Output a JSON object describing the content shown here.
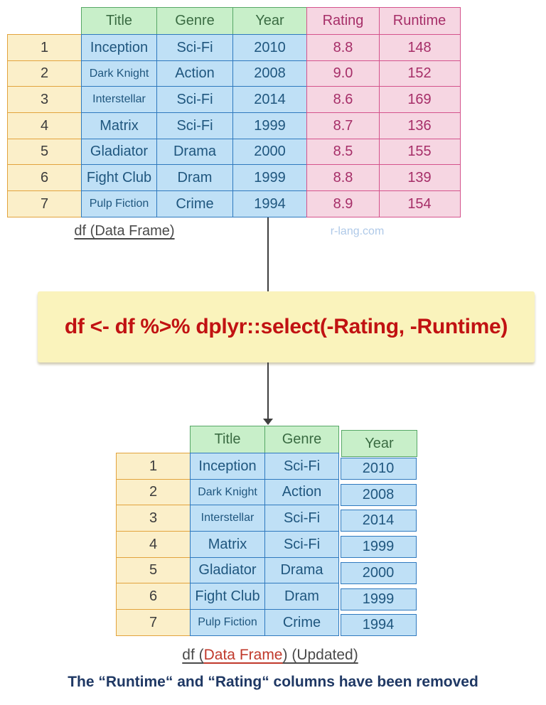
{
  "watermark": "r-lang.com",
  "code_box": {
    "code": "df <- df %>% dplyr::select(-Rating, -Runtime)"
  },
  "note": "The “Runtime“ and “Rating“ columns have been removed",
  "table_before": {
    "caption": "df (Data Frame)",
    "columns": [
      {
        "key": "title",
        "label": "Title",
        "group": "kept"
      },
      {
        "key": "genre",
        "label": "Genre",
        "group": "kept"
      },
      {
        "key": "year",
        "label": "Year",
        "group": "kept"
      },
      {
        "key": "rating",
        "label": "Rating",
        "group": "removed"
      },
      {
        "key": "runtime",
        "label": "Runtime",
        "group": "removed"
      }
    ],
    "rows": [
      {
        "n": "1",
        "title": "Inception",
        "genre": "Sci-Fi",
        "year": "2010",
        "rating": "8.8",
        "runtime": "148"
      },
      {
        "n": "2",
        "title": "Dark Knight",
        "genre": "Action",
        "year": "2008",
        "rating": "9.0",
        "runtime": "152"
      },
      {
        "n": "3",
        "title": "Interstellar",
        "genre": "Sci-Fi",
        "year": "2014",
        "rating": "8.6",
        "runtime": "169"
      },
      {
        "n": "4",
        "title": "Matrix",
        "genre": "Sci-Fi",
        "year": "1999",
        "rating": "8.7",
        "runtime": "136"
      },
      {
        "n": "5",
        "title": "Gladiator",
        "genre": "Drama",
        "year": "2000",
        "rating": "8.5",
        "runtime": "155"
      },
      {
        "n": "6",
        "title": "Fight Club",
        "genre": "Dram",
        "year": "1999",
        "rating": "8.8",
        "runtime": "139"
      },
      {
        "n": "7",
        "title": "Pulp Fiction",
        "genre": "Crime",
        "year": "1994",
        "rating": "8.9",
        "runtime": "154"
      }
    ]
  },
  "table_after": {
    "caption_prefix": "df (",
    "caption_highlight": "Data Frame",
    "caption_suffix": ") (Updated)",
    "columns": [
      {
        "key": "title",
        "label": "Title",
        "group": "kept"
      },
      {
        "key": "genre",
        "label": "Genre",
        "group": "kept"
      },
      {
        "key": "year",
        "label": "Year",
        "group": "kept"
      }
    ],
    "rows": [
      {
        "n": "1",
        "title": "Inception",
        "genre": "Sci-Fi",
        "year": "2010"
      },
      {
        "n": "2",
        "title": "Dark Knight",
        "genre": "Action",
        "year": "2008"
      },
      {
        "n": "3",
        "title": "Interstellar",
        "genre": "Sci-Fi",
        "year": "2014"
      },
      {
        "n": "4",
        "title": "Matrix",
        "genre": "Sci-Fi",
        "year": "1999"
      },
      {
        "n": "5",
        "title": "Gladiator",
        "genre": "Drama",
        "year": "2000"
      },
      {
        "n": "6",
        "title": "Fight Club",
        "genre": "Dram",
        "year": "1999"
      },
      {
        "n": "7",
        "title": "Pulp Fiction",
        "genre": "Crime",
        "year": "1994"
      }
    ]
  },
  "colors": {
    "header_green_bg": "#C8EFC9",
    "header_green_border": "#56A766",
    "header_green_text": "#3A6B42",
    "data_blue_bg": "#BFE0F6",
    "data_blue_border": "#2F79BE",
    "data_blue_text": "#1F567E",
    "index_yellow_bg": "#FBEFC9",
    "index_yellow_border": "#E2A33D",
    "index_text": "#3C3C3C",
    "removed_pink_bg": "#F6D6E2",
    "removed_pink_border": "#D4538C",
    "removed_pink_text": "#A62E68",
    "code_bg": "#FAF3BC",
    "code_text": "#C11212",
    "caption_gray": "#4A4A4A",
    "caption_red": "#C0392B",
    "note_navy": "#1F3864",
    "watermark_blue": "#AFC9E8",
    "arrow": "#3F3F3F"
  }
}
